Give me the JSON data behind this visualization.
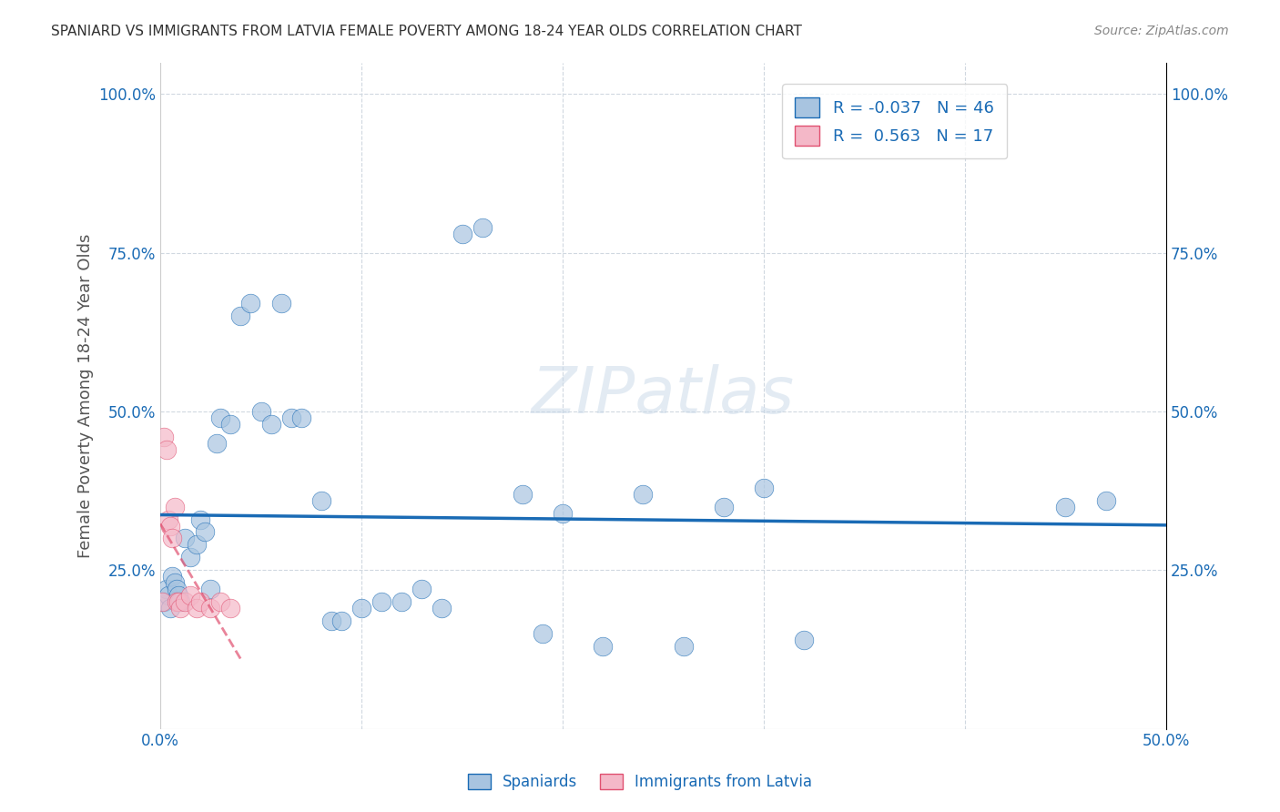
{
  "title": "SPANIARD VS IMMIGRANTS FROM LATVIA FEMALE POVERTY AMONG 18-24 YEAR OLDS CORRELATION CHART",
  "source": "Source: ZipAtlas.com",
  "xlabel": "",
  "ylabel": "Female Poverty Among 18-24 Year Olds",
  "xlim": [
    0.0,
    0.5
  ],
  "ylim": [
    0.0,
    1.05
  ],
  "xticks": [
    0.0,
    0.1,
    0.2,
    0.3,
    0.4,
    0.5
  ],
  "xticklabels": [
    "0.0%",
    "",
    "",
    "",
    "",
    "50.0%"
  ],
  "yticks": [
    0.0,
    0.25,
    0.5,
    0.75,
    1.0
  ],
  "yticklabels": [
    "",
    "25.0%",
    "50.0%",
    "75.0%",
    "100.0%"
  ],
  "spaniards_x": [
    0.002,
    0.003,
    0.004,
    0.005,
    0.006,
    0.007,
    0.008,
    0.009,
    0.01,
    0.012,
    0.015,
    0.018,
    0.02,
    0.022,
    0.025,
    0.028,
    0.03,
    0.035,
    0.04,
    0.045,
    0.05,
    0.055,
    0.06,
    0.065,
    0.07,
    0.08,
    0.085,
    0.09,
    0.1,
    0.11,
    0.12,
    0.13,
    0.14,
    0.15,
    0.16,
    0.18,
    0.19,
    0.2,
    0.22,
    0.24,
    0.26,
    0.28,
    0.3,
    0.32,
    0.45,
    0.47
  ],
  "spaniards_y": [
    0.2,
    0.22,
    0.21,
    0.19,
    0.24,
    0.23,
    0.22,
    0.21,
    0.2,
    0.3,
    0.27,
    0.29,
    0.33,
    0.31,
    0.22,
    0.45,
    0.49,
    0.48,
    0.65,
    0.67,
    0.5,
    0.48,
    0.67,
    0.49,
    0.49,
    0.36,
    0.17,
    0.17,
    0.19,
    0.2,
    0.2,
    0.22,
    0.19,
    0.78,
    0.79,
    0.37,
    0.15,
    0.34,
    0.13,
    0.37,
    0.13,
    0.35,
    0.38,
    0.14,
    0.35,
    0.36
  ],
  "latvia_x": [
    0.001,
    0.002,
    0.003,
    0.004,
    0.005,
    0.006,
    0.007,
    0.008,
    0.009,
    0.01,
    0.012,
    0.015,
    0.018,
    0.02,
    0.025,
    0.03,
    0.035
  ],
  "latvia_y": [
    0.2,
    0.46,
    0.44,
    0.33,
    0.32,
    0.3,
    0.35,
    0.2,
    0.2,
    0.19,
    0.2,
    0.21,
    0.19,
    0.2,
    0.19,
    0.2,
    0.19
  ],
  "spaniard_color": "#a8c4e0",
  "latvia_color": "#f4b8c8",
  "spaniard_line_color": "#1a6bb5",
  "latvia_line_color": "#e05070",
  "legend_box_color": "#f0f4f8",
  "R_spaniard": -0.037,
  "N_spaniard": 46,
  "R_latvia": 0.563,
  "N_latvia": 17,
  "watermark": "ZIPatlas",
  "background_color": "#ffffff",
  "grid_color": "#d0d8e0"
}
